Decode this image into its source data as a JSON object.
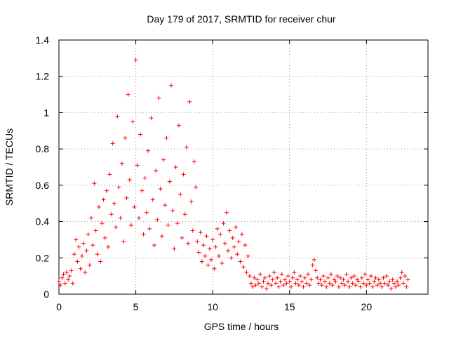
{
  "chart_data": {
    "type": "scatter",
    "title": "Day 179 of 2017, SRMTID for receiver chur",
    "xlabel": "GPS time / hours",
    "ylabel": "SRMTID / TECUs",
    "xlim": [
      0,
      24
    ],
    "ylim": [
      0,
      1.4
    ],
    "xticks": [
      0,
      5,
      10,
      15,
      20
    ],
    "xtick_labels": [
      "0",
      "5",
      "10",
      "15",
      "20"
    ],
    "yticks": [
      0,
      0.2,
      0.4,
      0.6,
      0.8,
      1,
      1.2,
      1.4
    ],
    "ytick_labels": [
      "0",
      "0.2",
      "0.4",
      "0.6",
      "0.8",
      "1",
      "1.2",
      "1.4"
    ],
    "grid": true,
    "marker": "plus",
    "series": [
      {
        "name": "SRMTID",
        "color": "#ff0000",
        "points": [
          [
            0.0,
            0.07
          ],
          [
            0.1,
            0.05
          ],
          [
            0.2,
            0.09
          ],
          [
            0.3,
            0.11
          ],
          [
            0.4,
            0.06
          ],
          [
            0.5,
            0.12
          ],
          [
            0.6,
            0.08
          ],
          [
            0.7,
            0.1
          ],
          [
            0.8,
            0.13
          ],
          [
            0.9,
            0.06
          ],
          [
            1.0,
            0.22
          ],
          [
            1.1,
            0.3
          ],
          [
            1.2,
            0.18
          ],
          [
            1.3,
            0.26
          ],
          [
            1.4,
            0.14
          ],
          [
            1.5,
            0.21
          ],
          [
            1.6,
            0.28
          ],
          [
            1.7,
            0.12
          ],
          [
            1.8,
            0.24
          ],
          [
            1.9,
            0.33
          ],
          [
            2.0,
            0.16
          ],
          [
            2.1,
            0.42
          ],
          [
            2.2,
            0.27
          ],
          [
            2.3,
            0.61
          ],
          [
            2.4,
            0.35
          ],
          [
            2.5,
            0.22
          ],
          [
            2.6,
            0.48
          ],
          [
            2.7,
            0.18
          ],
          [
            2.8,
            0.39
          ],
          [
            2.9,
            0.52
          ],
          [
            3.0,
            0.31
          ],
          [
            3.1,
            0.57
          ],
          [
            3.2,
            0.26
          ],
          [
            3.3,
            0.66
          ],
          [
            3.4,
            0.44
          ],
          [
            3.5,
            0.83
          ],
          [
            3.6,
            0.5
          ],
          [
            3.7,
            0.37
          ],
          [
            3.8,
            0.98
          ],
          [
            3.9,
            0.59
          ],
          [
            4.0,
            0.42
          ],
          [
            4.1,
            0.72
          ],
          [
            4.2,
            0.29
          ],
          [
            4.3,
            0.86
          ],
          [
            4.4,
            0.53
          ],
          [
            4.5,
            1.1
          ],
          [
            4.6,
            0.63
          ],
          [
            4.7,
            0.38
          ],
          [
            4.8,
            0.95
          ],
          [
            4.9,
            0.48
          ],
          [
            5.0,
            1.29
          ],
          [
            5.1,
            0.71
          ],
          [
            5.2,
            0.42
          ],
          [
            5.3,
            0.88
          ],
          [
            5.4,
            0.57
          ],
          [
            5.5,
            0.33
          ],
          [
            5.6,
            0.64
          ],
          [
            5.7,
            0.45
          ],
          [
            5.8,
            0.79
          ],
          [
            5.9,
            0.36
          ],
          [
            6.0,
            0.97
          ],
          [
            6.1,
            0.52
          ],
          [
            6.2,
            0.27
          ],
          [
            6.3,
            0.68
          ],
          [
            6.4,
            0.41
          ],
          [
            6.5,
            1.08
          ],
          [
            6.6,
            0.58
          ],
          [
            6.7,
            0.32
          ],
          [
            6.8,
            0.74
          ],
          [
            6.9,
            0.49
          ],
          [
            7.0,
            0.86
          ],
          [
            7.1,
            0.38
          ],
          [
            7.2,
            0.62
          ],
          [
            7.3,
            1.15
          ],
          [
            7.4,
            0.46
          ],
          [
            7.5,
            0.25
          ],
          [
            7.6,
            0.7
          ],
          [
            7.7,
            0.39
          ],
          [
            7.8,
            0.93
          ],
          [
            7.9,
            0.55
          ],
          [
            8.0,
            0.31
          ],
          [
            8.1,
            0.66
          ],
          [
            8.2,
            0.44
          ],
          [
            8.3,
            0.81
          ],
          [
            8.4,
            0.28
          ],
          [
            8.5,
            1.06
          ],
          [
            8.6,
            0.51
          ],
          [
            8.7,
            0.35
          ],
          [
            8.8,
            0.73
          ],
          [
            8.9,
            0.59
          ],
          [
            9.0,
            0.29
          ],
          [
            9.1,
            0.23
          ],
          [
            9.2,
            0.34
          ],
          [
            9.3,
            0.18
          ],
          [
            9.4,
            0.27
          ],
          [
            9.5,
            0.21
          ],
          [
            9.6,
            0.32
          ],
          [
            9.7,
            0.16
          ],
          [
            9.8,
            0.25
          ],
          [
            9.9,
            0.19
          ],
          [
            10.0,
            0.3
          ],
          [
            10.1,
            0.14
          ],
          [
            10.2,
            0.26
          ],
          [
            10.3,
            0.36
          ],
          [
            10.4,
            0.21
          ],
          [
            10.5,
            0.33
          ],
          [
            10.6,
            0.17
          ],
          [
            10.7,
            0.39
          ],
          [
            10.8,
            0.28
          ],
          [
            10.9,
            0.45
          ],
          [
            11.0,
            0.24
          ],
          [
            11.1,
            0.35
          ],
          [
            11.2,
            0.2
          ],
          [
            11.3,
            0.31
          ],
          [
            11.4,
            0.26
          ],
          [
            11.5,
            0.37
          ],
          [
            11.6,
            0.22
          ],
          [
            11.7,
            0.29
          ],
          [
            11.8,
            0.18
          ],
          [
            11.9,
            0.33
          ],
          [
            12.0,
            0.15
          ],
          [
            12.1,
            0.27
          ],
          [
            12.2,
            0.12
          ],
          [
            12.3,
            0.21
          ],
          [
            12.4,
            0.1
          ],
          [
            12.5,
            0.06
          ],
          [
            12.6,
            0.04
          ],
          [
            12.7,
            0.09
          ],
          [
            12.8,
            0.05
          ],
          [
            12.9,
            0.08
          ],
          [
            13.0,
            0.06
          ],
          [
            13.1,
            0.11
          ],
          [
            13.2,
            0.04
          ],
          [
            13.3,
            0.07
          ],
          [
            13.4,
            0.09
          ],
          [
            13.5,
            0.03
          ],
          [
            13.6,
            0.06
          ],
          [
            13.7,
            0.1
          ],
          [
            13.8,
            0.05
          ],
          [
            13.9,
            0.08
          ],
          [
            14.0,
            0.12
          ],
          [
            14.1,
            0.06
          ],
          [
            14.2,
            0.09
          ],
          [
            14.3,
            0.04
          ],
          [
            14.4,
            0.07
          ],
          [
            14.5,
            0.11
          ],
          [
            14.6,
            0.05
          ],
          [
            14.7,
            0.08
          ],
          [
            14.8,
            0.06
          ],
          [
            14.9,
            0.1
          ],
          [
            15.0,
            0.07
          ],
          [
            15.1,
            0.04
          ],
          [
            15.2,
            0.09
          ],
          [
            15.3,
            0.12
          ],
          [
            15.4,
            0.06
          ],
          [
            15.5,
            0.08
          ],
          [
            15.6,
            0.05
          ],
          [
            15.7,
            0.1
          ],
          [
            15.8,
            0.07
          ],
          [
            15.9,
            0.04
          ],
          [
            16.0,
            0.09
          ],
          [
            16.1,
            0.06
          ],
          [
            16.2,
            0.11
          ],
          [
            16.3,
            0.05
          ],
          [
            16.4,
            0.08
          ],
          [
            16.5,
            0.16
          ],
          [
            16.6,
            0.19
          ],
          [
            16.7,
            0.13
          ],
          [
            16.8,
            0.09
          ],
          [
            16.9,
            0.06
          ],
          [
            17.0,
            0.08
          ],
          [
            17.1,
            0.05
          ],
          [
            17.2,
            0.1
          ],
          [
            17.3,
            0.07
          ],
          [
            17.4,
            0.04
          ],
          [
            17.5,
            0.09
          ],
          [
            17.6,
            0.06
          ],
          [
            17.7,
            0.11
          ],
          [
            17.8,
            0.05
          ],
          [
            17.9,
            0.08
          ],
          [
            18.0,
            0.07
          ],
          [
            18.1,
            0.1
          ],
          [
            18.2,
            0.04
          ],
          [
            18.3,
            0.09
          ],
          [
            18.4,
            0.06
          ],
          [
            18.5,
            0.08
          ],
          [
            18.6,
            0.05
          ],
          [
            18.7,
            0.11
          ],
          [
            18.8,
            0.07
          ],
          [
            18.9,
            0.04
          ],
          [
            19.0,
            0.09
          ],
          [
            19.1,
            0.06
          ],
          [
            19.2,
            0.1
          ],
          [
            19.3,
            0.05
          ],
          [
            19.4,
            0.08
          ],
          [
            19.5,
            0.07
          ],
          [
            19.6,
            0.04
          ],
          [
            19.7,
            0.09
          ],
          [
            19.8,
            0.06
          ],
          [
            19.9,
            0.11
          ],
          [
            20.0,
            0.05
          ],
          [
            20.1,
            0.08
          ],
          [
            20.2,
            0.06
          ],
          [
            20.3,
            0.1
          ],
          [
            20.4,
            0.04
          ],
          [
            20.5,
            0.07
          ],
          [
            20.6,
            0.09
          ],
          [
            20.7,
            0.05
          ],
          [
            20.8,
            0.08
          ],
          [
            20.9,
            0.06
          ],
          [
            21.0,
            0.04
          ],
          [
            21.1,
            0.09
          ],
          [
            21.2,
            0.06
          ],
          [
            21.3,
            0.1
          ],
          [
            21.4,
            0.05
          ],
          [
            21.5,
            0.07
          ],
          [
            21.6,
            0.03
          ],
          [
            21.7,
            0.08
          ],
          [
            21.8,
            0.06
          ],
          [
            21.9,
            0.04
          ],
          [
            22.0,
            0.07
          ],
          [
            22.1,
            0.05
          ],
          [
            22.2,
            0.09
          ],
          [
            22.3,
            0.12
          ],
          [
            22.4,
            0.06
          ],
          [
            22.5,
            0.1
          ],
          [
            22.6,
            0.04
          ],
          [
            22.7,
            0.08
          ]
        ]
      }
    ]
  }
}
